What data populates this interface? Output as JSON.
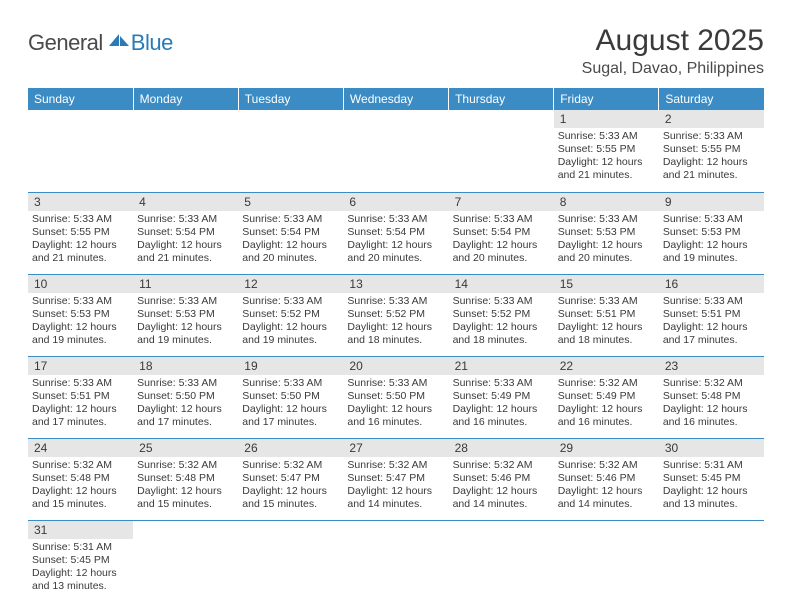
{
  "logo": {
    "general": "General",
    "blue": "Blue"
  },
  "header": {
    "month_title": "August 2025",
    "location": "Sugal, Davao, Philippines"
  },
  "colors": {
    "header_bg": "#3b8bc4",
    "header_fg": "#ffffff",
    "daynum_bg": "#e6e6e6",
    "row_border": "#3b8bc4",
    "text": "#3a3a3a"
  },
  "weekdays": [
    "Sunday",
    "Monday",
    "Tuesday",
    "Wednesday",
    "Thursday",
    "Friday",
    "Saturday"
  ],
  "calendar": {
    "first_weekday_index": 5,
    "days_in_month": 31
  },
  "days": {
    "1": {
      "sunrise": "5:33 AM",
      "sunset": "5:55 PM",
      "daylight": "12 hours and 21 minutes."
    },
    "2": {
      "sunrise": "5:33 AM",
      "sunset": "5:55 PM",
      "daylight": "12 hours and 21 minutes."
    },
    "3": {
      "sunrise": "5:33 AM",
      "sunset": "5:55 PM",
      "daylight": "12 hours and 21 minutes."
    },
    "4": {
      "sunrise": "5:33 AM",
      "sunset": "5:54 PM",
      "daylight": "12 hours and 21 minutes."
    },
    "5": {
      "sunrise": "5:33 AM",
      "sunset": "5:54 PM",
      "daylight": "12 hours and 20 minutes."
    },
    "6": {
      "sunrise": "5:33 AM",
      "sunset": "5:54 PM",
      "daylight": "12 hours and 20 minutes."
    },
    "7": {
      "sunrise": "5:33 AM",
      "sunset": "5:54 PM",
      "daylight": "12 hours and 20 minutes."
    },
    "8": {
      "sunrise": "5:33 AM",
      "sunset": "5:53 PM",
      "daylight": "12 hours and 20 minutes."
    },
    "9": {
      "sunrise": "5:33 AM",
      "sunset": "5:53 PM",
      "daylight": "12 hours and 19 minutes."
    },
    "10": {
      "sunrise": "5:33 AM",
      "sunset": "5:53 PM",
      "daylight": "12 hours and 19 minutes."
    },
    "11": {
      "sunrise": "5:33 AM",
      "sunset": "5:53 PM",
      "daylight": "12 hours and 19 minutes."
    },
    "12": {
      "sunrise": "5:33 AM",
      "sunset": "5:52 PM",
      "daylight": "12 hours and 19 minutes."
    },
    "13": {
      "sunrise": "5:33 AM",
      "sunset": "5:52 PM",
      "daylight": "12 hours and 18 minutes."
    },
    "14": {
      "sunrise": "5:33 AM",
      "sunset": "5:52 PM",
      "daylight": "12 hours and 18 minutes."
    },
    "15": {
      "sunrise": "5:33 AM",
      "sunset": "5:51 PM",
      "daylight": "12 hours and 18 minutes."
    },
    "16": {
      "sunrise": "5:33 AM",
      "sunset": "5:51 PM",
      "daylight": "12 hours and 17 minutes."
    },
    "17": {
      "sunrise": "5:33 AM",
      "sunset": "5:51 PM",
      "daylight": "12 hours and 17 minutes."
    },
    "18": {
      "sunrise": "5:33 AM",
      "sunset": "5:50 PM",
      "daylight": "12 hours and 17 minutes."
    },
    "19": {
      "sunrise": "5:33 AM",
      "sunset": "5:50 PM",
      "daylight": "12 hours and 17 minutes."
    },
    "20": {
      "sunrise": "5:33 AM",
      "sunset": "5:50 PM",
      "daylight": "12 hours and 16 minutes."
    },
    "21": {
      "sunrise": "5:33 AM",
      "sunset": "5:49 PM",
      "daylight": "12 hours and 16 minutes."
    },
    "22": {
      "sunrise": "5:32 AM",
      "sunset": "5:49 PM",
      "daylight": "12 hours and 16 minutes."
    },
    "23": {
      "sunrise": "5:32 AM",
      "sunset": "5:48 PM",
      "daylight": "12 hours and 16 minutes."
    },
    "24": {
      "sunrise": "5:32 AM",
      "sunset": "5:48 PM",
      "daylight": "12 hours and 15 minutes."
    },
    "25": {
      "sunrise": "5:32 AM",
      "sunset": "5:48 PM",
      "daylight": "12 hours and 15 minutes."
    },
    "26": {
      "sunrise": "5:32 AM",
      "sunset": "5:47 PM",
      "daylight": "12 hours and 15 minutes."
    },
    "27": {
      "sunrise": "5:32 AM",
      "sunset": "5:47 PM",
      "daylight": "12 hours and 14 minutes."
    },
    "28": {
      "sunrise": "5:32 AM",
      "sunset": "5:46 PM",
      "daylight": "12 hours and 14 minutes."
    },
    "29": {
      "sunrise": "5:32 AM",
      "sunset": "5:46 PM",
      "daylight": "12 hours and 14 minutes."
    },
    "30": {
      "sunrise": "5:31 AM",
      "sunset": "5:45 PM",
      "daylight": "12 hours and 13 minutes."
    },
    "31": {
      "sunrise": "5:31 AM",
      "sunset": "5:45 PM",
      "daylight": "12 hours and 13 minutes."
    }
  },
  "labels": {
    "sunrise_prefix": "Sunrise: ",
    "sunset_prefix": "Sunset: ",
    "daylight_prefix": "Daylight: "
  }
}
